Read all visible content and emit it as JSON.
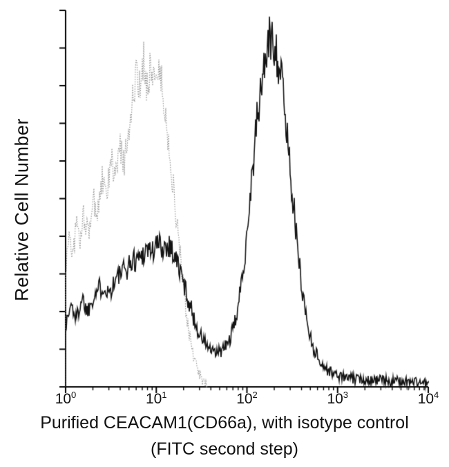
{
  "figure": {
    "ylabel": "Relative Cell Number",
    "caption_line1": "Purified CEACAM1(CD66a), with isotype control",
    "caption_line2": "(FITC second step)"
  },
  "colors": {
    "axis": "#000000",
    "isotype_trace": "#8c8c8c",
    "stained_trace": "#141414",
    "background": "#ffffff",
    "text": "#111111"
  },
  "chart_data": {
    "type": "line",
    "subtype": "flow-cytometry-histogram-overlay",
    "title": "",
    "xlabel": "Purified CEACAM1(CD66a), with isotype control (FITC second step)",
    "ylabel": "Relative Cell Number",
    "x_scale": "log10",
    "x_range_log10": [
      0,
      4
    ],
    "x_tick_exponents": [
      0,
      1,
      2,
      3,
      4
    ],
    "x_minor_ticks_per_decade": [
      2,
      3,
      4,
      5,
      6,
      7,
      8,
      9
    ],
    "y_axis": {
      "tick_count": 11,
      "tick_labels": [],
      "range": [
        0,
        1
      ]
    },
    "grid": "off",
    "legend": "none",
    "series": [
      {
        "name": "isotype-control",
        "color": "#8c8c8c",
        "style": "dotted",
        "line_width": 1.1,
        "noise": 0.045,
        "peak_x": 8,
        "peak_height": 0.87,
        "points": [
          [
            0.0,
            0.3
          ],
          [
            0.04,
            0.42
          ],
          [
            0.08,
            0.34
          ],
          [
            0.12,
            0.44
          ],
          [
            0.16,
            0.38
          ],
          [
            0.2,
            0.46
          ],
          [
            0.25,
            0.4
          ],
          [
            0.3,
            0.5
          ],
          [
            0.35,
            0.46
          ],
          [
            0.4,
            0.55
          ],
          [
            0.45,
            0.5
          ],
          [
            0.5,
            0.6
          ],
          [
            0.55,
            0.56
          ],
          [
            0.6,
            0.63
          ],
          [
            0.65,
            0.6
          ],
          [
            0.7,
            0.7
          ],
          [
            0.74,
            0.76
          ],
          [
            0.78,
            0.82
          ],
          [
            0.82,
            0.78
          ],
          [
            0.86,
            0.87
          ],
          [
            0.9,
            0.8
          ],
          [
            0.94,
            0.86
          ],
          [
            0.98,
            0.82
          ],
          [
            1.02,
            0.85
          ],
          [
            1.06,
            0.8
          ],
          [
            1.1,
            0.72
          ],
          [
            1.15,
            0.62
          ],
          [
            1.2,
            0.5
          ],
          [
            1.25,
            0.38
          ],
          [
            1.3,
            0.26
          ],
          [
            1.35,
            0.16
          ],
          [
            1.4,
            0.09
          ],
          [
            1.45,
            0.05
          ],
          [
            1.5,
            0.02
          ],
          [
            1.56,
            0.0
          ]
        ]
      },
      {
        "name": "ceacam1-cd66a-stained",
        "color": "#141414",
        "style": "solid",
        "line_width": 1.6,
        "noise": 0.05,
        "peak_x": 200,
        "peak_height": 0.93,
        "points": [
          [
            0.0,
            0.16
          ],
          [
            0.06,
            0.22
          ],
          [
            0.12,
            0.18
          ],
          [
            0.18,
            0.24
          ],
          [
            0.24,
            0.2
          ],
          [
            0.3,
            0.24
          ],
          [
            0.36,
            0.26
          ],
          [
            0.42,
            0.27
          ],
          [
            0.48,
            0.25
          ],
          [
            0.54,
            0.28
          ],
          [
            0.6,
            0.3
          ],
          [
            0.66,
            0.31
          ],
          [
            0.72,
            0.33
          ],
          [
            0.78,
            0.34
          ],
          [
            0.84,
            0.35
          ],
          [
            0.9,
            0.37
          ],
          [
            0.96,
            0.36
          ],
          [
            1.02,
            0.38
          ],
          [
            1.08,
            0.37
          ],
          [
            1.14,
            0.38
          ],
          [
            1.2,
            0.35
          ],
          [
            1.26,
            0.31
          ],
          [
            1.32,
            0.26
          ],
          [
            1.38,
            0.21
          ],
          [
            1.44,
            0.16
          ],
          [
            1.5,
            0.13
          ],
          [
            1.56,
            0.11
          ],
          [
            1.62,
            0.09
          ],
          [
            1.68,
            0.09
          ],
          [
            1.74,
            0.1
          ],
          [
            1.8,
            0.12
          ],
          [
            1.86,
            0.16
          ],
          [
            1.92,
            0.24
          ],
          [
            1.98,
            0.36
          ],
          [
            2.04,
            0.52
          ],
          [
            2.1,
            0.68
          ],
          [
            2.16,
            0.8
          ],
          [
            2.22,
            0.9
          ],
          [
            2.28,
            0.93
          ],
          [
            2.32,
            0.9
          ],
          [
            2.38,
            0.82
          ],
          [
            2.44,
            0.68
          ],
          [
            2.5,
            0.52
          ],
          [
            2.56,
            0.36
          ],
          [
            2.62,
            0.24
          ],
          [
            2.68,
            0.15
          ],
          [
            2.74,
            0.1
          ],
          [
            2.8,
            0.07
          ],
          [
            2.86,
            0.05
          ],
          [
            2.92,
            0.04
          ],
          [
            3.0,
            0.03
          ],
          [
            3.1,
            0.025
          ],
          [
            3.2,
            0.02
          ],
          [
            3.4,
            0.02
          ],
          [
            3.6,
            0.015
          ],
          [
            3.8,
            0.015
          ],
          [
            4.0,
            0.01
          ]
        ]
      }
    ]
  }
}
